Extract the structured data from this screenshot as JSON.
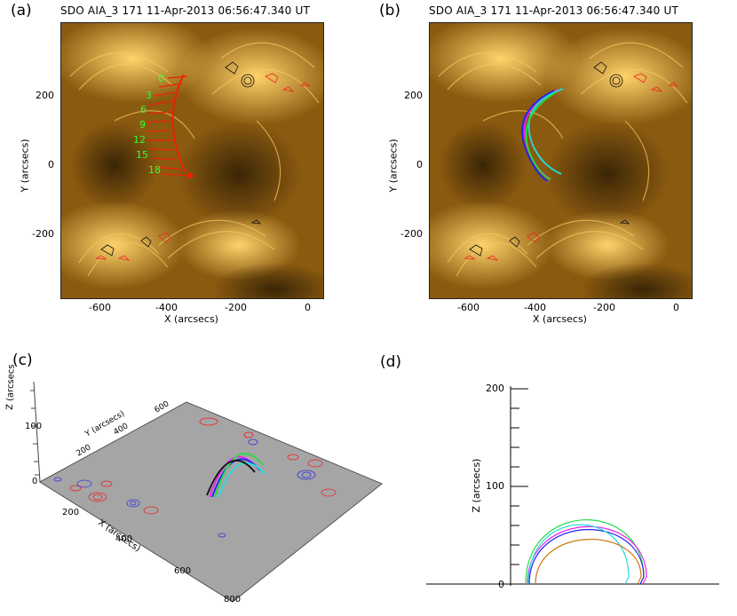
{
  "figure": {
    "panels": {
      "a": {
        "label": "(a)",
        "title": "SDO AIA_3 171 11-Apr-2013 06:56:47.340 UT",
        "xlabel": "X (arcsecs)",
        "ylabel": "Y (arcsecs)",
        "xticks": [
          "-600",
          "-400",
          "-200",
          "0"
        ],
        "yticks": [
          "200",
          "0",
          "-200"
        ],
        "slit_numbers": [
          "0",
          "3",
          "6",
          "9",
          "12",
          "15",
          "18"
        ]
      },
      "b": {
        "label": "(b)",
        "title": "SDO AIA_3 171 11-Apr-2013 06:56:47.340 UT",
        "xlabel": "X (arcsecs)",
        "ylabel": "Y (arcsecs)",
        "xticks": [
          "-600",
          "-400",
          "-200",
          "0"
        ],
        "yticks": [
          "200",
          "0",
          "-200"
        ]
      },
      "c": {
        "label": "(c)",
        "x_title": "X (arcsecs)",
        "y_title": "Y (arcsecs)",
        "z_title": "Z (arcsecs)",
        "xticks": [
          "200",
          "400",
          "600",
          "800"
        ],
        "yticks": [
          "200",
          "400",
          "600"
        ],
        "zticks": [
          "0",
          "100"
        ]
      },
      "d": {
        "label": "(d)",
        "ylabel": "Z (arcsecs)",
        "yticks": [
          "200",
          "100",
          "0"
        ]
      }
    },
    "colors": {
      "aia_base": "#8a5a10",
      "aia_bright": "#f5b83a",
      "loop_green": "#22dd44",
      "loop_magenta": "#ee22ee",
      "loop_blue": "#2222ee",
      "loop_cyan": "#22dddd",
      "loop_orange": "#cc7711",
      "contour_red": "#ee2222",
      "contour_blue": "#3333dd",
      "arrow_red": "#ee2200",
      "slit_label_green": "#33ff33"
    },
    "chart_data": {
      "type": "line",
      "title": "(d)",
      "xlabel": "",
      "ylabel": "Z (arcsecs)",
      "ylim": [
        0,
        210
      ],
      "series": [
        {
          "name": "green",
          "color": "#22dd44",
          "peak_z": 65
        },
        {
          "name": "magenta",
          "color": "#ee22ee",
          "peak_z": 58
        },
        {
          "name": "blue",
          "color": "#2222ee",
          "peak_z": 55
        },
        {
          "name": "cyan",
          "color": "#22dddd",
          "peak_z": 60
        },
        {
          "name": "orange",
          "color": "#cc7711",
          "peak_z": 45
        }
      ]
    }
  }
}
